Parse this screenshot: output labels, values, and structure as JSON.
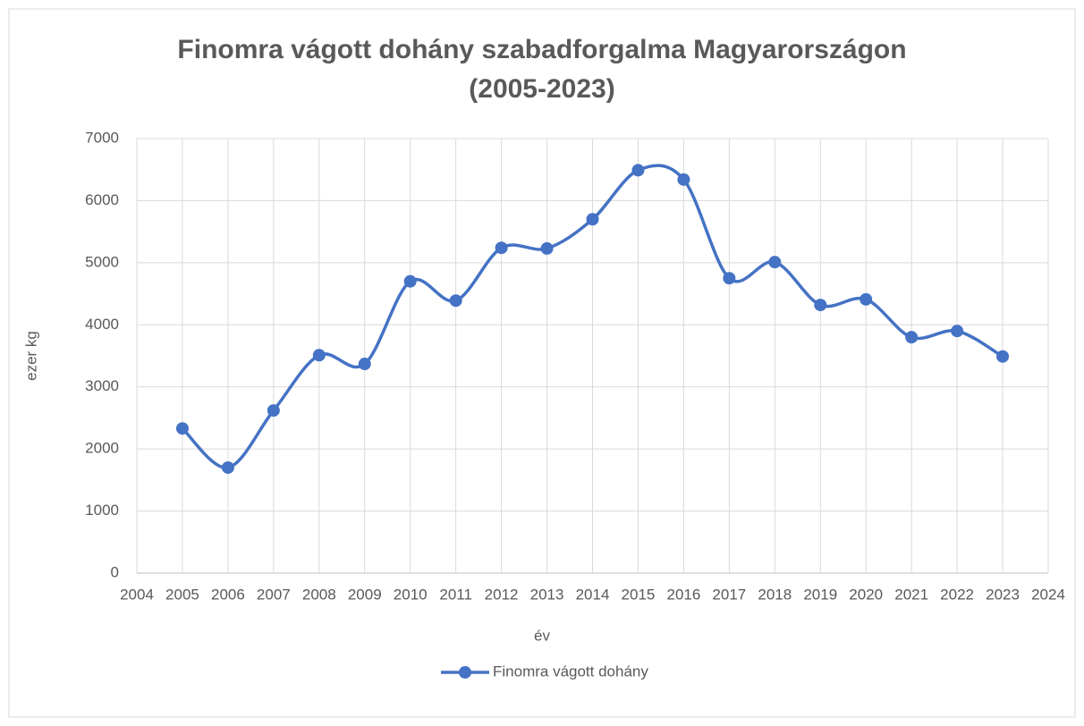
{
  "chart_data": {
    "type": "line",
    "title": [
      "Finomra vágott dohány szabadforgalma Magyarországon",
      "(2005-2023)"
    ],
    "x_label": "év",
    "y_label": "ezer kg",
    "x": [
      2005,
      2006,
      2007,
      2008,
      2009,
      2010,
      2011,
      2012,
      2013,
      2014,
      2015,
      2016,
      2017,
      2018,
      2019,
      2020,
      2021,
      2022,
      2023
    ],
    "series": [
      {
        "name": "Finomra vágott dohány",
        "color": "#4472c4",
        "values": [
          2330,
          1700,
          2620,
          3510,
          3370,
          4700,
          4390,
          5240,
          5230,
          5700,
          6490,
          6340,
          4750,
          5010,
          4320,
          4410,
          3800,
          3900,
          3490
        ]
      }
    ],
    "xlim": [
      2004,
      2024
    ],
    "xticks": [
      2004,
      2005,
      2006,
      2007,
      2008,
      2009,
      2010,
      2011,
      2012,
      2013,
      2014,
      2015,
      2016,
      2017,
      2018,
      2019,
      2020,
      2021,
      2022,
      2023,
      2024
    ],
    "ylim": [
      0,
      7000
    ],
    "yticks": [
      0,
      1000,
      2000,
      3000,
      4000,
      5000,
      6000,
      7000
    ],
    "grid": true,
    "smooth": true,
    "legend": "bottom"
  }
}
